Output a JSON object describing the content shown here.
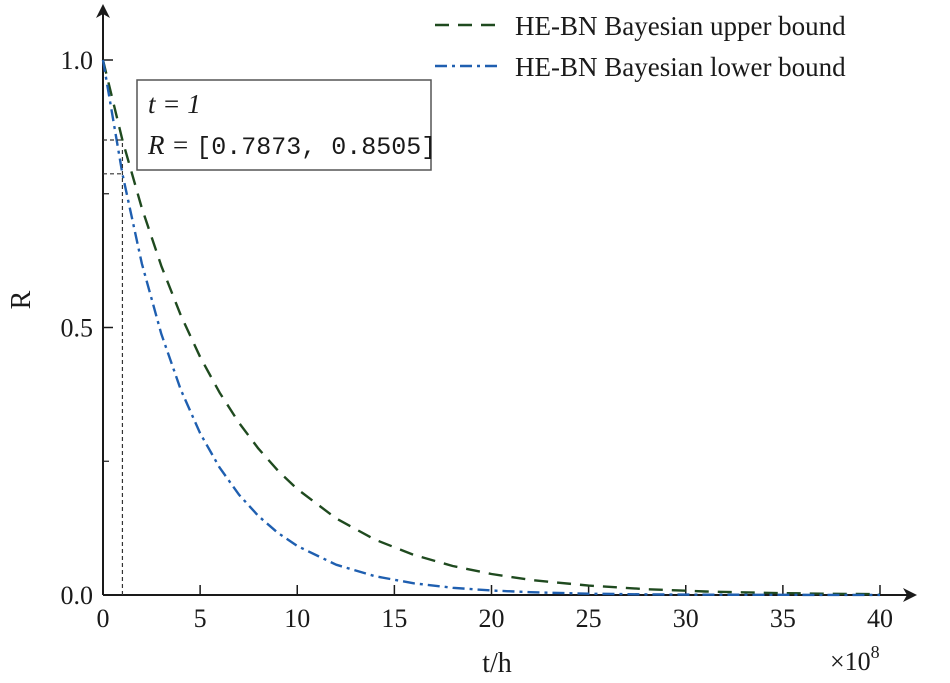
{
  "chart_data": {
    "type": "line",
    "xlabel": "t/h",
    "ylabel": "R",
    "x_multiplier_label": "×10",
    "x_multiplier_exponent": "8",
    "xlim": [
      0,
      40
    ],
    "ylim": [
      0,
      1
    ],
    "x_ticks": [
      0,
      5,
      10,
      15,
      20,
      25,
      30,
      35,
      40
    ],
    "y_ticks": [
      0.0,
      0.5,
      1.0
    ],
    "y_tick_labels": [
      "0.0",
      "0.5",
      "1.0"
    ],
    "y_minor_ticks": [
      0.25,
      0.75
    ],
    "grid": false,
    "legend_position": "top-right",
    "series": [
      {
        "name": "HE-BN Bayesian upper bound",
        "color": "#1f4a1f",
        "style": "dashed",
        "x": [
          0,
          1,
          2,
          3,
          4,
          5,
          6,
          7,
          8,
          9,
          10,
          12,
          14,
          16,
          18,
          20,
          22,
          25,
          28,
          31,
          34,
          37,
          40
        ],
        "y": [
          1.0,
          0.8505,
          0.7233,
          0.6152,
          0.5232,
          0.445,
          0.3784,
          0.3218,
          0.2737,
          0.2328,
          0.198,
          0.1432,
          0.1036,
          0.0749,
          0.0542,
          0.0392,
          0.0283,
          0.0175,
          0.0108,
          0.0066,
          0.0041,
          0.0025,
          0.0015
        ]
      },
      {
        "name": "HE-BN Bayesian lower bound",
        "color": "#1f5fb0",
        "style": "dashdot",
        "x": [
          0,
          1,
          2,
          3,
          4,
          5,
          6,
          7,
          8,
          9,
          10,
          12,
          14,
          16,
          18,
          20,
          22,
          25,
          28,
          31,
          34,
          37,
          40
        ],
        "y": [
          1.0,
          0.7873,
          0.6198,
          0.488,
          0.3842,
          0.3025,
          0.2381,
          0.1875,
          0.1476,
          0.1162,
          0.0915,
          0.0567,
          0.0351,
          0.0218,
          0.0135,
          0.0084,
          0.0052,
          0.0025,
          0.0012,
          0.0006,
          0.0003,
          0.0001,
          0.0001
        ]
      }
    ],
    "annotation": {
      "line1": "t = 1",
      "line2_prefix": "R = ",
      "line2_value": "[0.7873, 0.8505]",
      "marker_x": 1
    }
  }
}
